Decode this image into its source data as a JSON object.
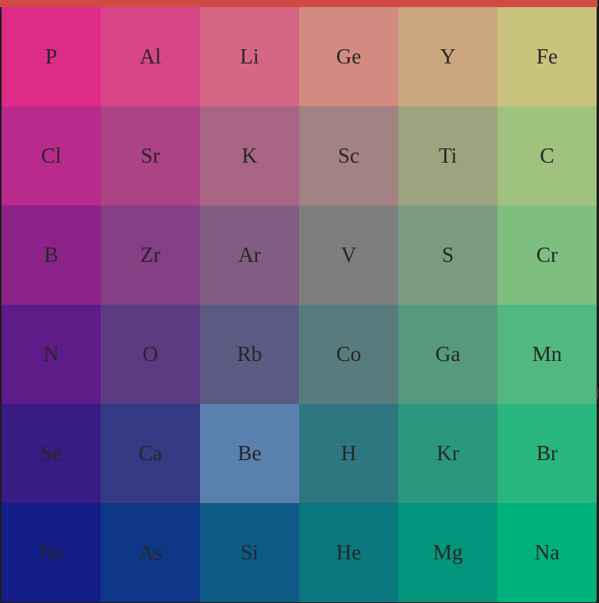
{
  "board": {
    "rows": 6,
    "cols": 6,
    "tiles": [
      {
        "symbol": "P",
        "color": "#df2b88"
      },
      {
        "symbol": "Al",
        "color": "#d84586"
      },
      {
        "symbol": "Li",
        "color": "#d56785"
      },
      {
        "symbol": "Ge",
        "color": "#d38a80"
      },
      {
        "symbol": "Y",
        "color": "#cca77e"
      },
      {
        "symbol": "Fe",
        "color": "#c9c37e"
      },
      {
        "symbol": "Cl",
        "color": "#ba2a8c"
      },
      {
        "symbol": "Sr",
        "color": "#ac4385"
      },
      {
        "symbol": "K",
        "color": "#a86585"
      },
      {
        "symbol": "Sc",
        "color": "#a38282"
      },
      {
        "symbol": "Ti",
        "color": "#9ea37f"
      },
      {
        "symbol": "C",
        "color": "#9fc27f"
      },
      {
        "symbol": "B",
        "color": "#8b2388"
      },
      {
        "symbol": "Zr",
        "color": "#843f85"
      },
      {
        "symbol": "Ar",
        "color": "#815d83"
      },
      {
        "symbol": "V",
        "color": "#7e7e7e"
      },
      {
        "symbol": "S",
        "color": "#7c9b7f"
      },
      {
        "symbol": "Cr",
        "color": "#7ebf80"
      },
      {
        "symbol": "N",
        "color": "#5e1c88"
      },
      {
        "symbol": "O",
        "color": "#5c3b83"
      },
      {
        "symbol": "Rb",
        "color": "#5b5a82"
      },
      {
        "symbol": "Co",
        "color": "#587c7d"
      },
      {
        "symbol": "Ga",
        "color": "#55997e"
      },
      {
        "symbol": "Mn",
        "color": "#51b97f"
      },
      {
        "symbol": "Se",
        "color": "#381c84"
      },
      {
        "symbol": "Ca",
        "color": "#353a84"
      },
      {
        "symbol": "Be",
        "color": "#5a80ae"
      },
      {
        "symbol": "H",
        "color": "#2e7781"
      },
      {
        "symbol": "Kr",
        "color": "#2a987f"
      },
      {
        "symbol": "Br",
        "color": "#29b77e"
      },
      {
        "symbol": "Ne",
        "color": "#131e88"
      },
      {
        "symbol": "As",
        "color": "#0f3788"
      },
      {
        "symbol": "Si",
        "color": "#0e5a87"
      },
      {
        "symbol": "He",
        "color": "#0b777f"
      },
      {
        "symbol": "Mg",
        "color": "#05957c"
      },
      {
        "symbol": "Na",
        "color": "#00b27b"
      }
    ]
  },
  "colors": {
    "top_bar": "#d24a44",
    "background": "#1d1d1d",
    "tile_text": "#262626"
  }
}
